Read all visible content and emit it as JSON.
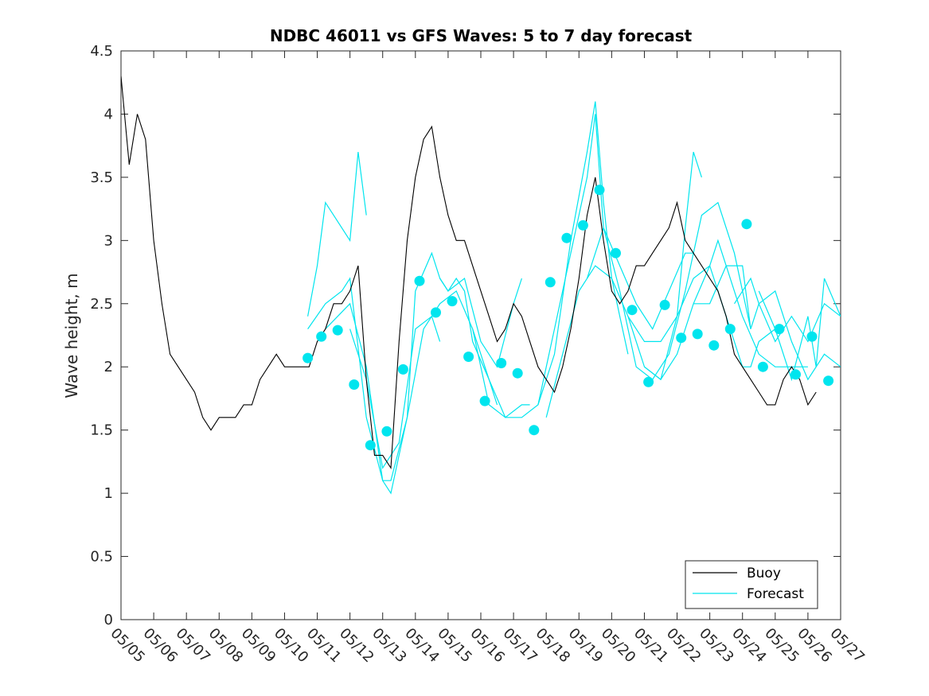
{
  "chart_data": {
    "type": "line",
    "title": "NDBC 46011 vs GFS Waves: 5 to 7 day forecast",
    "xlabel": "",
    "ylabel": "Wave height, m",
    "xlim": [
      "05/05",
      "05/27"
    ],
    "ylim": [
      0,
      4.5
    ],
    "yticks": [
      "0",
      "0.5",
      "1",
      "1.5",
      "2",
      "2.5",
      "3",
      "3.5",
      "4",
      "4.5"
    ],
    "xticks": [
      "05/05",
      "05/06",
      "05/07",
      "05/08",
      "05/09",
      "05/10",
      "05/11",
      "05/12",
      "05/13",
      "05/14",
      "05/15",
      "05/16",
      "05/17",
      "05/18",
      "05/19",
      "05/20",
      "05/21",
      "05/22",
      "05/23",
      "05/24",
      "05/25",
      "05/26",
      "05/27"
    ],
    "grid": false,
    "legend_position": "bottom-right",
    "colors": {
      "buoy": "#000000",
      "forecast": "#00e5ee",
      "marker": "#00e5ee"
    },
    "series": [
      {
        "name": "Buoy",
        "x": [
          "05/05 00:00",
          "05/05 06:00",
          "05/05 12:00",
          "05/05 18:00",
          "05/06 00:00",
          "05/06 06:00",
          "05/06 12:00",
          "05/06 18:00",
          "05/07 00:00",
          "05/07 06:00",
          "05/07 12:00",
          "05/07 18:00",
          "05/08 00:00",
          "05/08 06:00",
          "05/08 12:00",
          "05/08 18:00",
          "05/09 00:00",
          "05/09 06:00",
          "05/09 12:00",
          "05/09 18:00",
          "05/10 00:00",
          "05/10 06:00",
          "05/10 12:00",
          "05/10 18:00",
          "05/11 00:00",
          "05/11 06:00",
          "05/11 12:00",
          "05/11 18:00",
          "05/12 00:00",
          "05/12 06:00",
          "05/12 12:00",
          "05/12 18:00",
          "05/13 00:00",
          "05/13 06:00",
          "05/13 12:00",
          "05/13 18:00",
          "05/14 00:00",
          "05/14 06:00",
          "05/14 12:00",
          "05/14 18:00",
          "05/15 00:00",
          "05/15 06:00",
          "05/15 12:00",
          "05/15 18:00",
          "05/16 00:00",
          "05/16 06:00",
          "05/16 12:00",
          "05/16 18:00",
          "05/17 00:00",
          "05/17 06:00",
          "05/17 12:00",
          "05/17 18:00",
          "05/18 00:00",
          "05/18 06:00",
          "05/18 12:00",
          "05/18 18:00",
          "05/19 00:00",
          "05/19 06:00",
          "05/19 12:00",
          "05/19 18:00",
          "05/20 00:00",
          "05/20 06:00",
          "05/20 12:00",
          "05/20 18:00",
          "05/21 00:00",
          "05/21 06:00",
          "05/21 12:00",
          "05/21 18:00",
          "05/22 00:00",
          "05/22 06:00",
          "05/22 12:00",
          "05/22 18:00",
          "05/23 00:00",
          "05/23 06:00",
          "05/23 12:00",
          "05/23 18:00",
          "05/24 00:00",
          "05/24 06:00",
          "05/24 12:00",
          "05/24 18:00",
          "05/25 00:00",
          "05/25 06:00",
          "05/25 12:00",
          "05/25 18:00",
          "05/26 00:00",
          "05/26 06:00"
        ],
        "values": [
          4.3,
          3.6,
          4.0,
          3.8,
          3.0,
          2.5,
          2.1,
          2.0,
          1.9,
          1.8,
          1.6,
          1.5,
          1.6,
          1.6,
          1.6,
          1.7,
          1.7,
          1.9,
          2.0,
          2.1,
          2.0,
          2.0,
          2.0,
          2.0,
          2.2,
          2.3,
          2.5,
          2.5,
          2.6,
          2.8,
          1.9,
          1.3,
          1.3,
          1.2,
          2.2,
          3.0,
          3.5,
          3.8,
          3.9,
          3.5,
          3.2,
          3.0,
          3.0,
          2.8,
          2.6,
          2.4,
          2.2,
          2.3,
          2.5,
          2.4,
          2.2,
          2.0,
          1.9,
          1.8,
          2.0,
          2.3,
          2.7,
          3.2,
          3.5,
          3.0,
          2.6,
          2.5,
          2.6,
          2.8,
          2.8,
          2.9,
          3.0,
          3.1,
          3.3,
          3.0,
          2.9,
          2.8,
          2.7,
          2.6,
          2.4,
          2.1,
          2.0,
          1.9,
          1.8,
          1.7,
          1.7,
          1.9,
          2.0,
          1.9,
          1.7,
          1.8
        ]
      },
      {
        "name": "Forecast",
        "runs": [
          {
            "x": [
              "05/10 17:00",
              "05/11 00:00",
              "05/11 06:00",
              "05/11 12:00",
              "05/12 00:00",
              "05/12 06:00",
              "05/12 12:00"
            ],
            "values": [
              2.4,
              2.8,
              3.3,
              3.2,
              3.0,
              3.7,
              3.2
            ]
          },
          {
            "x": [
              "05/10 17:00",
              "05/11 06:00",
              "05/11 18:00",
              "05/12 00:00",
              "05/12 12:00",
              "05/13 00:00",
              "05/13 06:00",
              "05/13 18:00",
              "05/14 00:00",
              "05/14 12:00",
              "05/14 18:00",
              "05/15 00:00",
              "05/15 06:00",
              "05/15 12:00",
              "05/15 18:00",
              "05/16 06:00",
              "05/16 12:00"
            ],
            "values": [
              2.3,
              2.5,
              2.6,
              2.7,
              1.6,
              1.1,
              1.1,
              1.6,
              2.6,
              2.9,
              2.7,
              2.6,
              2.7,
              2.6,
              2.2,
              1.9,
              1.7
            ]
          },
          {
            "x": [
              "05/11 06:00",
              "05/12 00:00",
              "05/12 12:00",
              "05/13 00:00",
              "05/13 06:00",
              "05/13 18:00",
              "05/14 06:00",
              "05/14 18:00",
              "05/15 06:00",
              "05/15 18:00",
              "05/16 06:00",
              "05/16 18:00",
              "05/17 06:00",
              "05/17 12:00"
            ],
            "values": [
              2.3,
              2.5,
              2.0,
              1.1,
              1.0,
              1.6,
              2.3,
              2.5,
              2.6,
              2.3,
              1.7,
              1.6,
              1.7,
              1.7
            ]
          },
          {
            "x": [
              "05/12 00:00",
              "05/12 12:00",
              "05/13 00:00",
              "05/13 12:00",
              "05/14 00:00",
              "05/14 12:00",
              "05/14 18:00"
            ],
            "values": [
              2.3,
              1.9,
              1.2,
              1.4,
              2.3,
              2.4,
              2.2
            ]
          },
          {
            "x": [
              "05/14 18:00",
              "05/15 00:00",
              "05/15 12:00",
              "05/16 00:00",
              "05/16 12:00",
              "05/17 00:00",
              "05/17 06:00"
            ],
            "values": [
              2.7,
              2.6,
              2.7,
              2.2,
              2.0,
              2.5,
              2.7
            ]
          },
          {
            "x": [
              "05/15 18:00",
              "05/16 06:00",
              "05/16 18:00",
              "05/17 06:00",
              "05/17 18:00",
              "05/18 06:00",
              "05/18 18:00",
              "05/19 06:00",
              "05/19 12:00",
              "05/19 18:00",
              "05/20 00:00",
              "05/20 06:00",
              "05/20 12:00"
            ],
            "values": [
              2.3,
              1.9,
              1.6,
              1.6,
              1.7,
              2.1,
              3.0,
              3.7,
              4.1,
              3.3,
              2.7,
              2.4,
              2.1
            ]
          },
          {
            "x": [
              "05/17 18:00",
              "05/18 06:00",
              "05/18 18:00",
              "05/19 06:00",
              "05/19 12:00",
              "05/19 18:00",
              "05/20 06:00",
              "05/20 18:00",
              "05/21 06:00",
              "05/21 18:00",
              "05/22 06:00",
              "05/22 12:00"
            ],
            "values": [
              1.7,
              2.3,
              2.9,
              3.5,
              4.0,
              3.1,
              2.8,
              2.5,
              2.3,
              2.6,
              2.9,
              2.9
            ]
          },
          {
            "x": [
              "05/18 00:00",
              "05/18 12:00",
              "05/19 00:00",
              "05/19 12:00",
              "05/20 00:00",
              "05/20 12:00",
              "05/21 00:00",
              "05/21 12:00",
              "05/22 00:00",
              "05/22 06:00",
              "05/22 12:00",
              "05/22 18:00"
            ],
            "values": [
              1.6,
              2.1,
              2.6,
              2.8,
              2.7,
              2.4,
              2.0,
              1.9,
              2.4,
              3.1,
              3.7,
              3.5
            ]
          },
          {
            "x": [
              "05/19 06:00",
              "05/19 18:00",
              "05/20 06:00",
              "05/20 18:00",
              "05/21 06:00",
              "05/21 18:00",
              "05/22 06:00",
              "05/22 18:00",
              "05/23 06:00",
              "05/23 18:00",
              "05/24 06:00"
            ],
            "values": [
              2.7,
              3.1,
              2.6,
              2.0,
              1.9,
              2.1,
              2.6,
              3.2,
              3.3,
              2.9,
              2.3
            ]
          },
          {
            "x": [
              "05/20 12:00",
              "05/21 00:00",
              "05/21 12:00",
              "05/22 00:00",
              "05/22 12:00",
              "05/23 00:00",
              "05/23 12:00",
              "05/24 00:00",
              "05/24 06:00",
              "05/24 12:00",
              "05/25 00:00"
            ],
            "values": [
              2.4,
              2.2,
              2.2,
              2.4,
              2.7,
              2.8,
              2.4,
              2.0,
              2.0,
              2.2,
              2.3
            ]
          },
          {
            "x": [
              "05/21 00:00",
              "05/21 12:00",
              "05/22 00:00",
              "05/22 12:00",
              "05/23 00:00",
              "05/23 06:00",
              "05/23 12:00",
              "05/24 00:00",
              "05/24 12:00",
              "05/25 00:00",
              "05/25 12:00",
              "05/26 00:00"
            ],
            "values": [
              2.0,
              1.9,
              2.1,
              2.5,
              2.8,
              3.0,
              2.8,
              2.4,
              2.1,
              2.0,
              2.0,
              2.0
            ]
          },
          {
            "x": [
              "05/22 12:00",
              "05/23 00:00",
              "05/23 12:00",
              "05/24 00:00",
              "05/24 06:00",
              "05/24 12:00",
              "05/25 00:00",
              "05/25 12:00",
              "05/26 00:00",
              "05/26 12:00",
              "05/27 00:00"
            ],
            "values": [
              2.5,
              2.5,
              2.8,
              2.8,
              2.3,
              2.5,
              2.6,
              2.2,
              1.9,
              2.1,
              2.0
            ]
          },
          {
            "x": [
              "05/23 18:00",
              "05/24 06:00",
              "05/24 12:00",
              "05/25 00:00",
              "05/25 06:00",
              "05/25 12:00",
              "05/26 00:00",
              "05/26 12:00",
              "05/27 00:00"
            ],
            "values": [
              2.5,
              2.7,
              2.5,
              2.2,
              2.3,
              2.4,
              2.2,
              2.5,
              2.4
            ]
          },
          {
            "x": [
              "05/24 12:00",
              "05/25 00:00",
              "05/25 12:00",
              "05/26 00:00",
              "05/26 06:00",
              "05/26 12:00",
              "05/27 00:00"
            ],
            "values": [
              2.6,
              2.3,
              1.9,
              2.4,
              2.0,
              2.7,
              2.4
            ]
          }
        ]
      }
    ],
    "markers": {
      "x": [
        "05/10 17:00",
        "05/11 03:00",
        "05/11 15:00",
        "05/12 03:00",
        "05/12 15:00",
        "05/13 03:00",
        "05/13 15:00",
        "05/14 03:00",
        "05/14 15:00",
        "05/15 03:00",
        "05/15 15:00",
        "05/16 03:00",
        "05/16 15:00",
        "05/17 03:00",
        "05/17 15:00",
        "05/18 03:00",
        "05/18 15:00",
        "05/19 03:00",
        "05/19 15:00",
        "05/20 03:00",
        "05/20 15:00",
        "05/21 03:00",
        "05/21 15:00",
        "05/22 03:00",
        "05/22 15:00",
        "05/23 03:00",
        "05/23 15:00",
        "05/24 03:00",
        "05/24 15:00",
        "05/25 03:00",
        "05/25 15:00",
        "05/26 03:00",
        "05/26 15:00"
      ],
      "values": [
        2.07,
        2.24,
        2.29,
        1.86,
        1.38,
        1.49,
        1.98,
        2.68,
        2.43,
        2.52,
        2.08,
        1.73,
        2.03,
        1.95,
        1.5,
        2.67,
        3.02,
        3.12,
        3.4,
        2.9,
        2.45,
        1.88,
        2.49,
        2.23,
        2.26,
        2.17,
        2.3,
        3.13,
        2.0,
        2.3,
        1.94,
        2.24,
        1.89
      ]
    }
  }
}
